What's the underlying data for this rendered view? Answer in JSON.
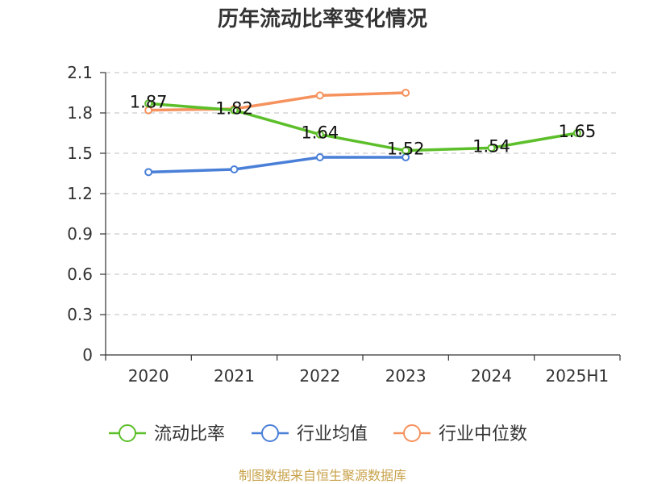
{
  "chart_data": {
    "type": "line",
    "title": "历年流动比率变化情况",
    "xlabel": "",
    "ylabel": "",
    "categories": [
      "2020",
      "2021",
      "2022",
      "2023",
      "2024",
      "2025H1"
    ],
    "ylim": [
      0,
      2.1
    ],
    "yticks": [
      "0",
      "0.3",
      "0.6",
      "0.9",
      "1.2",
      "1.5",
      "1.8",
      "2.1"
    ],
    "grid": true,
    "legend_position": "bottom",
    "series": [
      {
        "name": "流动比率",
        "color": "#5cbf2a",
        "values": [
          1.87,
          1.82,
          1.64,
          1.52,
          1.54,
          1.65
        ],
        "data_labels": [
          "1.87",
          "1.82",
          "1.64",
          "1.52",
          "1.54",
          "1.65"
        ]
      },
      {
        "name": "行业均值",
        "color": "#4a7fd8",
        "values": [
          1.36,
          1.38,
          1.47,
          1.47,
          null,
          null
        ]
      },
      {
        "name": "行业中位数",
        "color": "#f5925d",
        "values": [
          1.82,
          1.83,
          1.93,
          1.95,
          null,
          null
        ]
      }
    ]
  },
  "source_text": "制图数据来自恒生聚源数据库"
}
